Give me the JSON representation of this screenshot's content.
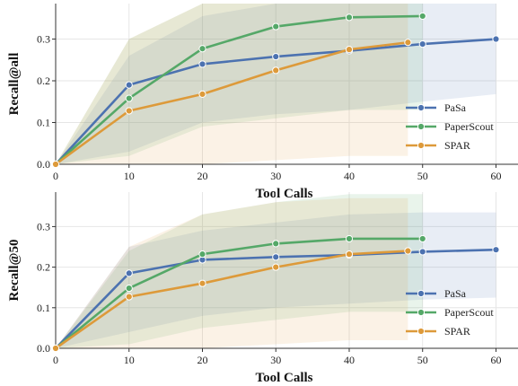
{
  "chart_data": [
    {
      "type": "line",
      "xlabel": "Tool Calls",
      "ylabel": "Recall@all",
      "xlim": [
        0,
        63
      ],
      "ylim": [
        0,
        0.385
      ],
      "xticks": [
        "0",
        "10",
        "20",
        "30",
        "40",
        "50",
        "60"
      ],
      "yticks": [
        "0.0",
        "0.1",
        "0.2",
        "0.3"
      ],
      "grid": true,
      "legend": "bottom-right",
      "series": [
        {
          "name": "PaSa",
          "color": "#4c72b0",
          "x": [
            0,
            10,
            20,
            30,
            40,
            50,
            60
          ],
          "values": [
            0.0,
            0.19,
            0.24,
            0.258,
            0.272,
            0.288,
            0.3
          ],
          "lower": [
            0.0,
            0.03,
            0.1,
            0.12,
            0.13,
            0.15,
            0.168
          ],
          "upper": [
            0.0,
            0.26,
            0.355,
            0.385,
            0.385,
            0.385,
            0.385
          ]
        },
        {
          "name": "PaperScout",
          "color": "#55a868",
          "x": [
            0,
            10,
            20,
            30,
            40,
            50
          ],
          "values": [
            0.0,
            0.158,
            0.277,
            0.33,
            0.352,
            0.355
          ],
          "lower": [
            0.0,
            0.02,
            0.09,
            0.11,
            0.13,
            0.13
          ],
          "upper": [
            0.0,
            0.3,
            0.385,
            0.385,
            0.385,
            0.385
          ]
        },
        {
          "name": "SPAR",
          "color": "#dd9a3a",
          "x": [
            0,
            10,
            20,
            30,
            40,
            48
          ],
          "values": [
            0.0,
            0.128,
            0.168,
            0.225,
            0.275,
            0.292
          ],
          "lower": [
            0.0,
            0.0,
            0.0,
            0.01,
            0.02,
            0.02
          ],
          "upper": [
            0.0,
            0.3,
            0.385,
            0.385,
            0.385,
            0.385
          ]
        }
      ]
    },
    {
      "type": "line",
      "xlabel": "Tool Calls",
      "ylabel": "Recall@50",
      "xlim": [
        0,
        63
      ],
      "ylim": [
        0,
        0.385
      ],
      "xticks": [
        "0",
        "10",
        "20",
        "30",
        "40",
        "50",
        "60"
      ],
      "yticks": [
        "0.0",
        "0.1",
        "0.2",
        "0.3"
      ],
      "grid": true,
      "legend": "bottom-right",
      "series": [
        {
          "name": "PaSa",
          "color": "#4c72b0",
          "x": [
            0,
            10,
            20,
            30,
            40,
            50,
            60
          ],
          "values": [
            0.0,
            0.185,
            0.218,
            0.225,
            0.23,
            0.238,
            0.243
          ],
          "lower": [
            0.0,
            0.04,
            0.08,
            0.1,
            0.11,
            0.12,
            0.125
          ],
          "upper": [
            0.0,
            0.25,
            0.29,
            0.31,
            0.33,
            0.335,
            0.335
          ]
        },
        {
          "name": "PaperScout",
          "color": "#55a868",
          "x": [
            0,
            10,
            20,
            30,
            40,
            50
          ],
          "values": [
            0.0,
            0.148,
            0.232,
            0.258,
            0.27,
            0.27
          ],
          "lower": [
            0.0,
            0.01,
            0.05,
            0.07,
            0.09,
            0.09
          ],
          "upper": [
            0.0,
            0.24,
            0.33,
            0.36,
            0.38,
            0.38
          ]
        },
        {
          "name": "SPAR",
          "color": "#dd9a3a",
          "x": [
            0,
            10,
            20,
            30,
            40,
            48
          ],
          "values": [
            0.0,
            0.127,
            0.16,
            0.2,
            0.232,
            0.24
          ],
          "lower": [
            0.0,
            0.0,
            0.0,
            0.01,
            0.02,
            0.02
          ],
          "upper": [
            0.0,
            0.25,
            0.33,
            0.36,
            0.37,
            0.37
          ]
        }
      ]
    }
  ]
}
